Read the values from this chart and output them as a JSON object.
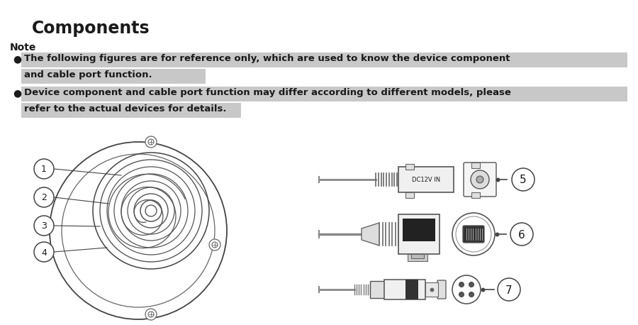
{
  "title": "Components",
  "note_label": "Note",
  "bullet1_line1": "The following figures are for reference only, which are used to know the device component",
  "bullet1_line2": "and cable port function.",
  "bullet2_line1": "Device component and cable port function may differ according to different models, please",
  "bullet2_line2": "refer to the actual devices for details.",
  "highlight_color": "#c8c8c8",
  "text_color": "#1a1a1a",
  "bg_color": "#ffffff",
  "dc_label": "DC12V IN",
  "line_color": "#444444",
  "fig_width": 9.0,
  "fig_height": 4.58
}
